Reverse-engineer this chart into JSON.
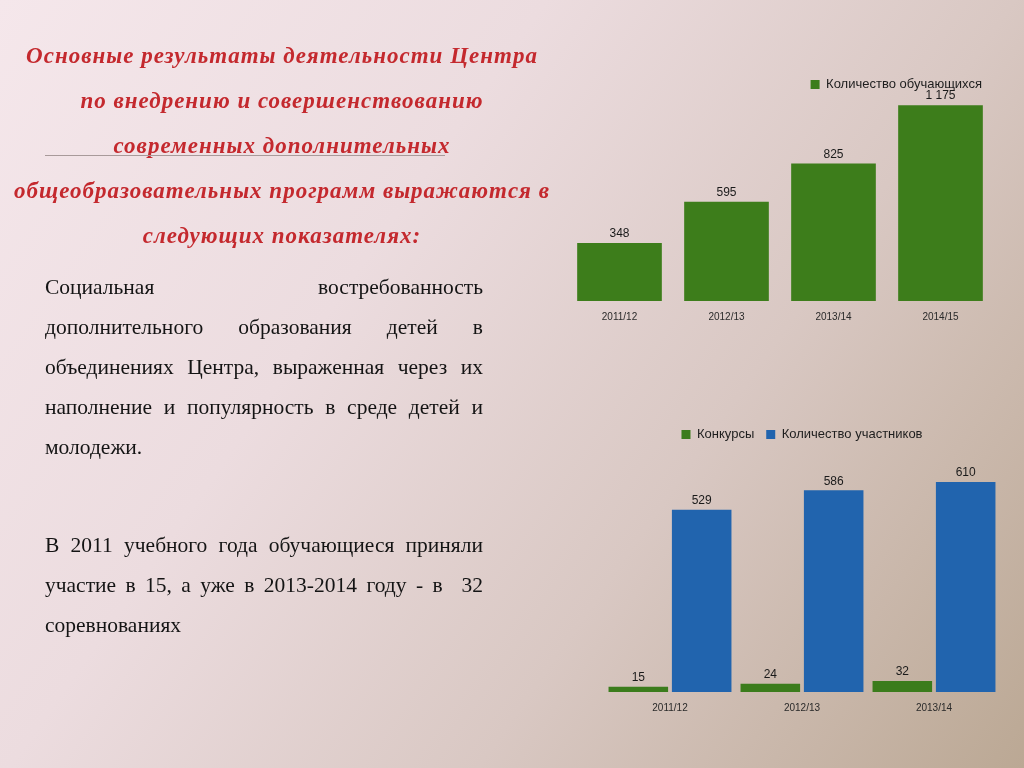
{
  "chart_data": [
    {
      "type": "other",
      "title": "Основные результаты деятельности Центра по внедрению и совершенствованию современных дополнительных общеобразовательных программ выражаются в следующих показателях:",
      "annotations": [
        "Социальная востребованность дополнительного образования детей в объединениях Центра, выраженная через их наполнение и популярность в среде детей и молодежи.",
        "В 2011 учебного года обучающиеся приняли участие в 15, а уже в 2013-2014 году - в  32 соревнованиях"
      ]
    },
    {
      "type": "bar",
      "categories": [
        "2011/12",
        "2012/13",
        "2013/14",
        "2014/15"
      ],
      "series": [
        {
          "name": "Количество обучающихся",
          "color": "#3d7d1b",
          "values": [
            348,
            595,
            825,
            1175
          ],
          "value_labels": [
            "348",
            "595",
            "825",
            "1 175"
          ]
        }
      ],
      "legend": "top right",
      "tick_labels": "x"
    },
    {
      "type": "bar",
      "categories": [
        "2011/12",
        "2012/13",
        "2013/14"
      ],
      "series": [
        {
          "name": "Конкурсы",
          "color": "#3b7c1c",
          "values": [
            15,
            24,
            32
          ]
        },
        {
          "name": "Количество участников",
          "color": "#2164ae",
          "values": [
            529,
            586,
            610
          ]
        }
      ],
      "data_labels": true,
      "legend": "top",
      "tick_labels": "x"
    }
  ]
}
